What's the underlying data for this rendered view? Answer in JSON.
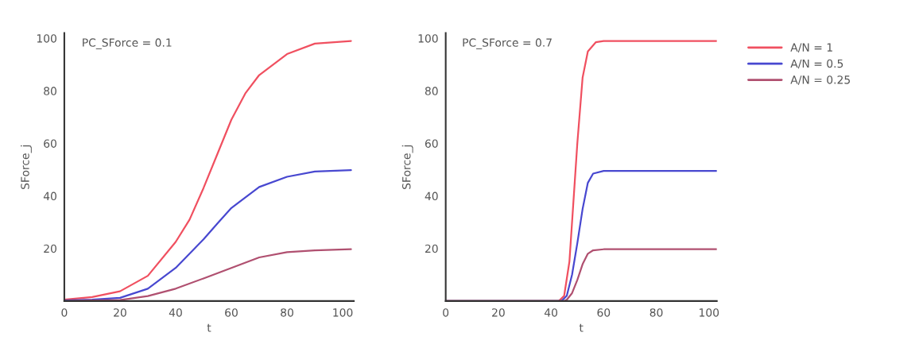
{
  "chart_data": [
    {
      "type": "line",
      "annotations": [
        "PC_SForce = 0.1"
      ],
      "xlabel": "t",
      "ylabel": "SForce_j",
      "xlim": [
        0,
        104
      ],
      "ylim": [
        0,
        102
      ],
      "xticks": [
        0,
        20,
        40,
        60,
        80,
        100
      ],
      "yticks": [
        20,
        40,
        60,
        80,
        100
      ],
      "grid": false,
      "legend": false,
      "series": [
        {
          "color": "#f05060",
          "x": [
            0,
            10,
            20,
            30,
            40,
            45,
            50,
            55,
            60,
            65,
            70,
            80,
            90,
            103
          ],
          "values": [
            0.5,
            1.5,
            3.7,
            9.6,
            22.5,
            31,
            43,
            56,
            69,
            79,
            86,
            94,
            98,
            99
          ]
        },
        {
          "color": "#4848d0",
          "x": [
            0,
            10,
            20,
            30,
            40,
            50,
            55,
            60,
            70,
            80,
            90,
            103
          ],
          "values": [
            0.2,
            0.5,
            1.2,
            4.7,
            12.6,
            23.5,
            29.5,
            35.4,
            43.4,
            47.3,
            49.3,
            49.8
          ]
        },
        {
          "color": "#b05070",
          "x": [
            0,
            10,
            20,
            30,
            40,
            50,
            60,
            70,
            80,
            90,
            103
          ],
          "values": [
            0,
            0.2,
            0.4,
            1.9,
            4.7,
            8.6,
            12.6,
            16.6,
            18.6,
            19.3,
            19.7
          ]
        }
      ]
    },
    {
      "type": "line",
      "annotations": [
        "PC_SForce = 0.7"
      ],
      "xlabel": "t",
      "ylabel": "SForce_j",
      "xlim": [
        0,
        103
      ],
      "ylim": [
        0,
        102
      ],
      "xticks": [
        0,
        20,
        40,
        60,
        80,
        100
      ],
      "yticks": [
        20,
        40,
        60,
        80,
        100
      ],
      "grid": false,
      "legend": "right",
      "series": [
        {
          "name": "A/N = 1",
          "color": "#f05060",
          "x": [
            0,
            43,
            45,
            47,
            49,
            50,
            52,
            54,
            57,
            60,
            103
          ],
          "values": [
            0,
            0,
            2,
            15,
            45,
            60,
            85,
            95,
            98.5,
            99,
            99
          ]
        },
        {
          "name": "A/N = 0.5",
          "color": "#4848d0",
          "x": [
            0,
            44,
            46,
            48,
            50,
            52,
            54,
            56,
            60,
            103
          ],
          "values": [
            0,
            0,
            2,
            10,
            22,
            35,
            45,
            48.5,
            49.5,
            49.5
          ]
        },
        {
          "name": "A/N = 0.25",
          "color": "#b05070",
          "x": [
            0,
            45,
            46,
            48,
            50,
            52,
            54,
            56,
            60,
            103
          ],
          "values": [
            0,
            0,
            0.5,
            3,
            8,
            14,
            18,
            19.3,
            19.7,
            19.7
          ]
        }
      ]
    }
  ]
}
